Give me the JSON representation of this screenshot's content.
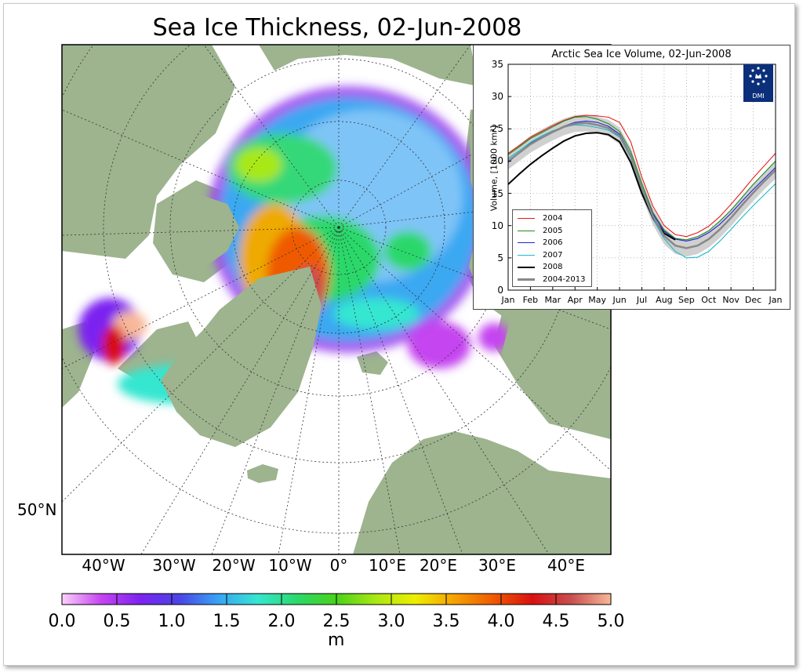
{
  "title": "Sea Ice Thickness, 02-Jun-2008",
  "map": {
    "lon_labels": [
      "40°W",
      "30°W",
      "20°W",
      "10°W",
      "0°",
      "10°E",
      "20°E",
      "30°E",
      "40°E"
    ],
    "lat_label": "50°N",
    "colors": {
      "land": "#9db48f",
      "open_water": "#ffffff",
      "grid": "#333333"
    }
  },
  "colorbar": {
    "ticks": [
      "0.0",
      "0.5",
      "1.0",
      "1.5",
      "2.0",
      "2.5",
      "3.0",
      "3.5",
      "4.0",
      "4.5",
      "5.0"
    ],
    "unit": "m",
    "range": [
      0,
      5
    ],
    "colormap": [
      "#fbd1fb",
      "#c544f0",
      "#7c22f0",
      "#4a45e6",
      "#38a5f5",
      "#36e6d0",
      "#2bd86a",
      "#4ad21a",
      "#a8e814",
      "#eeee00",
      "#f6a200",
      "#ef5a00",
      "#d81010",
      "#c85050",
      "#f8b898"
    ]
  },
  "inset": {
    "title": "Arctic Sea Ice Volume, 02-Jun-2008",
    "logo_text": "DMI",
    "ylabel": "Volume, [1000 km³]"
  },
  "chart_data": [
    {
      "type": "line",
      "title": "Arctic Sea Ice Volume, 02-Jun-2008",
      "ylabel": "Volume, [1000 km³]",
      "xlabel": "",
      "ylim": [
        0,
        35
      ],
      "yticks": [
        0,
        5,
        10,
        15,
        20,
        25,
        30,
        35
      ],
      "xticks": [
        "Jan",
        "Feb",
        "Mar",
        "Apr",
        "May",
        "Jun",
        "Jul",
        "Aug",
        "Sep",
        "Oct",
        "Nov",
        "Dec",
        "Jan"
      ],
      "grid": true,
      "legend_position": "lower-left",
      "x_months": [
        0,
        0.5,
        1,
        1.5,
        2,
        2.5,
        3,
        3.5,
        4,
        4.5,
        5,
        5.5,
        6,
        6.5,
        7,
        7.5,
        8,
        8.5,
        9,
        9.5,
        10,
        10.5,
        11,
        11.5,
        12
      ],
      "series": [
        {
          "name": "2004",
          "color": "#e8181a",
          "values": [
            21.2,
            22.4,
            23.7,
            24.6,
            25.5,
            26.3,
            26.9,
            27.1,
            27.0,
            26.8,
            26.0,
            23.0,
            17.5,
            13.0,
            10.0,
            8.6,
            8.3,
            8.9,
            9.9,
            11.4,
            13.3,
            15.3,
            17.4,
            19.3,
            21.2
          ]
        },
        {
          "name": "2005",
          "color": "#1b8e1b",
          "values": [
            21.0,
            22.2,
            23.5,
            24.4,
            25.3,
            26.2,
            26.8,
            26.9,
            26.5,
            25.8,
            24.6,
            21.5,
            16.5,
            12.0,
            9.3,
            8.0,
            7.8,
            8.3,
            9.2,
            10.7,
            12.4,
            14.4,
            16.4,
            18.2,
            20.0
          ]
        },
        {
          "name": "2006",
          "color": "#2424d8",
          "values": [
            19.8,
            21.3,
            22.8,
            23.7,
            24.6,
            25.4,
            26.0,
            26.2,
            26.0,
            25.4,
            24.2,
            21.0,
            16.0,
            11.8,
            9.1,
            7.9,
            7.6,
            8.0,
            8.9,
            10.2,
            11.9,
            13.8,
            15.6,
            17.3,
            19.0
          ]
        },
        {
          "name": "2007",
          "color": "#20b8c8",
          "values": [
            20.4,
            21.6,
            22.9,
            23.9,
            24.7,
            25.3,
            25.6,
            25.5,
            25.2,
            24.8,
            23.7,
            20.5,
            15.4,
            11.0,
            8.0,
            6.0,
            5.0,
            5.1,
            6.0,
            7.6,
            9.4,
            11.3,
            13.1,
            14.8,
            16.5
          ]
        },
        {
          "name": "2008",
          "color": "#000000",
          "values": [
            16.4,
            18.0,
            19.5,
            20.8,
            22.0,
            23.1,
            23.9,
            24.3,
            24.4,
            24.1,
            23.0,
            19.8,
            15.0,
            11.2,
            8.8,
            7.8
          ]
        },
        {
          "name": "2004-2013",
          "color": "#888888",
          "values": [
            20.0,
            21.3,
            22.6,
            23.6,
            24.5,
            25.3,
            25.8,
            25.9,
            25.6,
            25.1,
            23.9,
            20.8,
            15.8,
            11.4,
            8.4,
            6.9,
            6.5,
            6.9,
            7.9,
            9.4,
            11.2,
            13.2,
            15.1,
            16.9,
            18.6
          ]
        }
      ]
    }
  ]
}
